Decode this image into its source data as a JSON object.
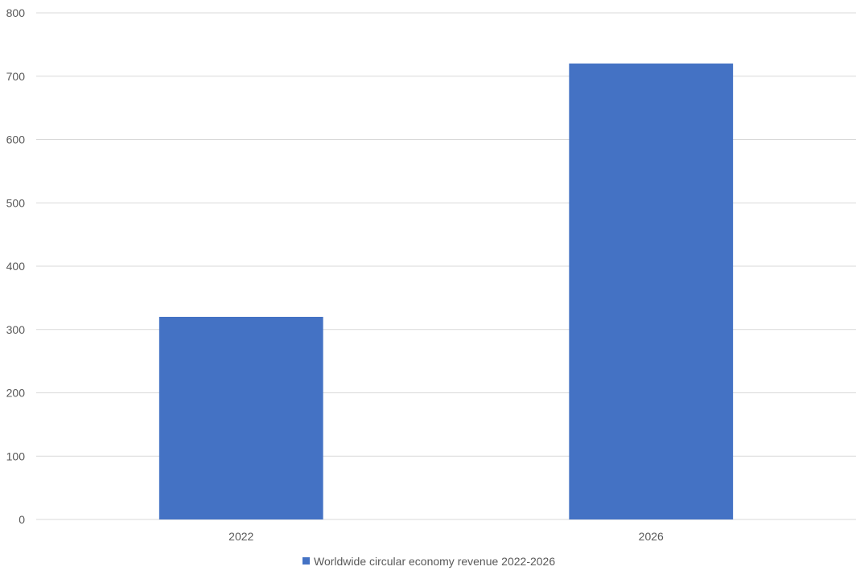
{
  "chart_data": {
    "type": "bar",
    "title": "",
    "xlabel": "",
    "ylabel": "",
    "categories": [
      "2022",
      "2026"
    ],
    "series": [
      {
        "name": "Worldwide circular economy revenue 2022-2026",
        "values": [
          320,
          720
        ]
      }
    ],
    "ylim": [
      0,
      800
    ],
    "yticks": [
      "0",
      "100",
      "200",
      "300",
      "400",
      "500",
      "600",
      "700",
      "800"
    ],
    "grid": true,
    "legend_position": "bottom",
    "colors": {
      "bar": "#4472c4",
      "grid": "#d9d9d9",
      "text": "#595959"
    }
  }
}
